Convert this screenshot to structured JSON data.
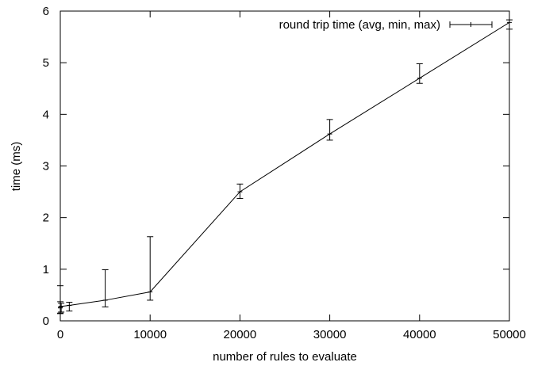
{
  "chart_data": {
    "type": "line",
    "title": "",
    "xlabel": "number of rules to evaluate",
    "ylabel": "time (ms)",
    "xlim": [
      0,
      50000
    ],
    "ylim": [
      0,
      6
    ],
    "xticks": [
      0,
      10000,
      20000,
      30000,
      40000,
      50000
    ],
    "yticks": [
      0,
      1,
      2,
      3,
      4,
      5,
      6
    ],
    "grid": false,
    "legend_position": "top-right",
    "series": [
      {
        "name": "round trip time (avg, min, max)",
        "style": "line with error bars",
        "x": [
          0,
          10,
          100,
          1000,
          5000,
          10000,
          20000,
          30000,
          40000,
          50000
        ],
        "y": [
          0.25,
          0.27,
          0.28,
          0.3,
          0.4,
          0.56,
          2.5,
          3.62,
          4.7,
          5.78
        ],
        "min": [
          0.14,
          0.15,
          0.17,
          0.19,
          0.27,
          0.4,
          2.37,
          3.5,
          4.6,
          5.65
        ],
        "max": [
          0.68,
          0.37,
          0.34,
          0.36,
          0.99,
          1.63,
          2.65,
          3.9,
          4.98,
          5.83
        ]
      }
    ]
  }
}
